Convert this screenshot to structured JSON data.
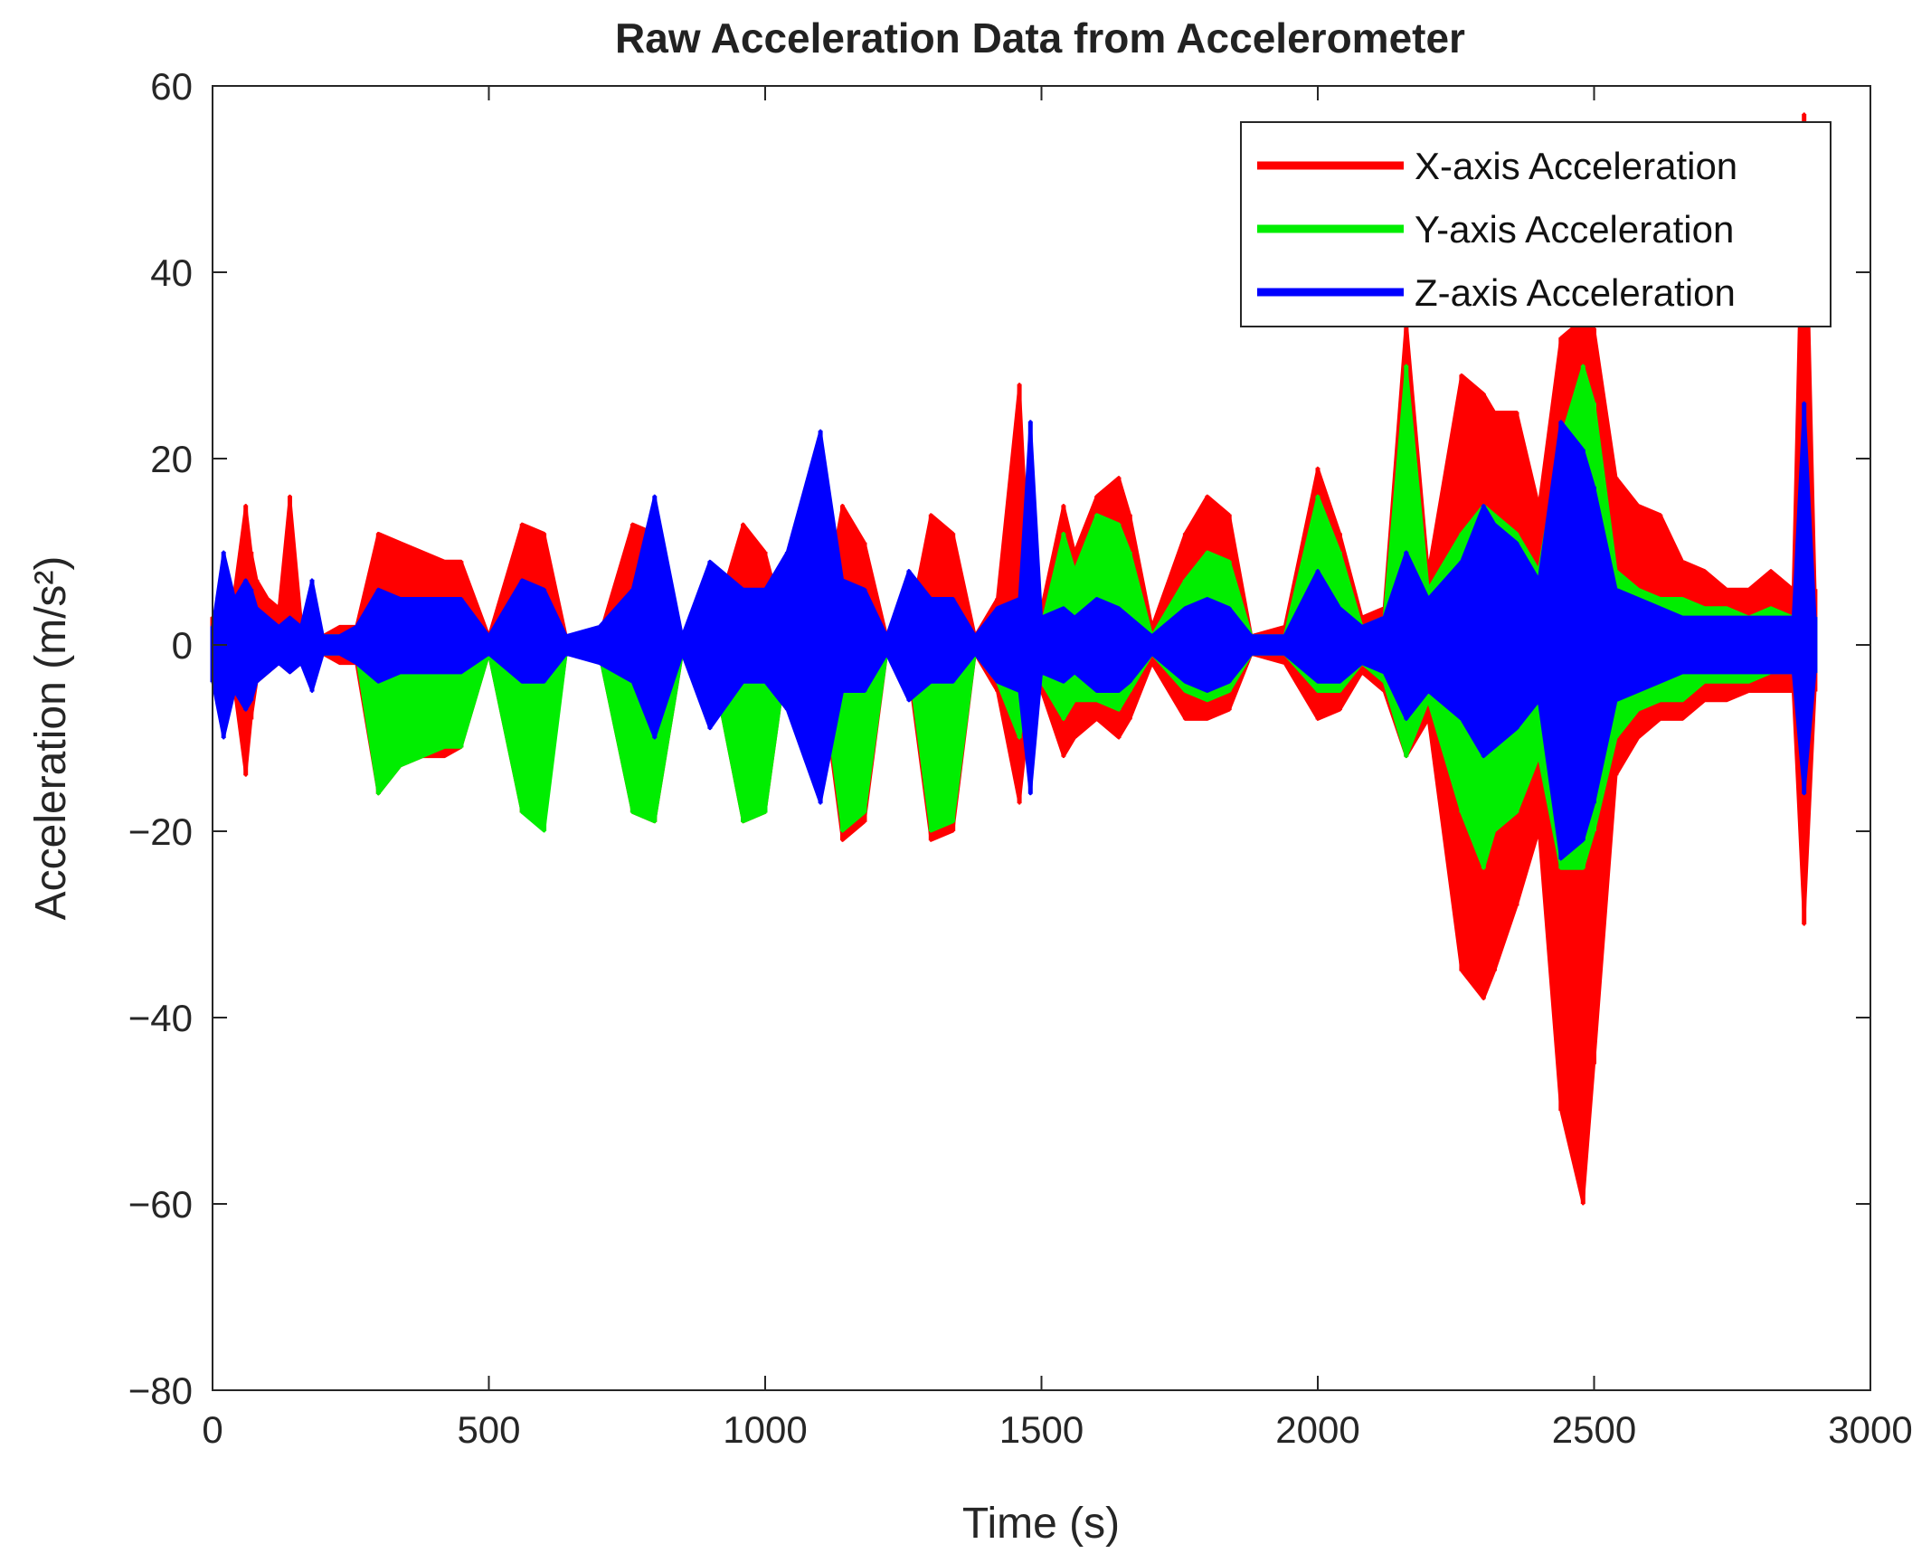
{
  "chart_data": {
    "type": "line",
    "title": "Raw Acceleration Data from Accelerometer",
    "xlabel": "Time (s)",
    "ylabel": "Acceleration (m/s²)",
    "xlim": [
      0,
      3000
    ],
    "ylim": [
      -80,
      60
    ],
    "xticks": [
      0,
      500,
      1000,
      1500,
      2000,
      2500,
      3000
    ],
    "xtick_labels": [
      "0",
      "500",
      "1000",
      "1500",
      "2000",
      "2500",
      "3000"
    ],
    "yticks": [
      60,
      40,
      20,
      0,
      -20,
      -40,
      -60,
      -80
    ],
    "ytick_labels": [
      "60",
      "40",
      "20",
      "0",
      "−20",
      "−40",
      "−60",
      "−80"
    ],
    "grid": false,
    "legend_position": "top-right",
    "series": [
      {
        "name": "X-axis Acceleration",
        "color": "#ff0000",
        "x": [
          0,
          20,
          40,
          60,
          70,
          80,
          100,
          120,
          140,
          160,
          180,
          200,
          230,
          260,
          300,
          340,
          380,
          420,
          450,
          500,
          560,
          600,
          640,
          700,
          760,
          800,
          850,
          900,
          960,
          1000,
          1040,
          1100,
          1140,
          1180,
          1220,
          1260,
          1300,
          1340,
          1380,
          1420,
          1460,
          1480,
          1500,
          1540,
          1560,
          1600,
          1640,
          1660,
          1700,
          1760,
          1800,
          1840,
          1880,
          1940,
          2000,
          2040,
          2080,
          2120,
          2160,
          2200,
          2260,
          2300,
          2320,
          2360,
          2400,
          2440,
          2480,
          2500,
          2540,
          2580,
          2620,
          2660,
          2700,
          2740,
          2780,
          2820,
          2860,
          2880,
          2900
        ],
        "upper": [
          3,
          3,
          6,
          15,
          10,
          7,
          5,
          4,
          16,
          3,
          2,
          1,
          2,
          2,
          12,
          11,
          10,
          9,
          9,
          1,
          13,
          12,
          1,
          1,
          13,
          12,
          1,
          1,
          13,
          10,
          1,
          2,
          15,
          11,
          1,
          2,
          14,
          12,
          1,
          5,
          28,
          5,
          4,
          15,
          10,
          16,
          18,
          14,
          2,
          12,
          16,
          14,
          1,
          2,
          19,
          12,
          3,
          4,
          35,
          8,
          29,
          27,
          25,
          25,
          15,
          33,
          35,
          34,
          18,
          15,
          14,
          9,
          8,
          6,
          6,
          8,
          6,
          57,
          6
        ],
        "lower": [
          -3,
          -4,
          -5,
          -14,
          -8,
          -4,
          -3,
          -2,
          -3,
          -2,
          -2,
          -1,
          -2,
          -2,
          -16,
          -13,
          -12,
          -12,
          -11,
          -1,
          -18,
          -19,
          -1,
          -1,
          -18,
          -19,
          -1,
          -1,
          -19,
          -18,
          -1,
          -3,
          -21,
          -19,
          -1,
          -3,
          -21,
          -20,
          -1,
          -5,
          -17,
          -6,
          -5,
          -12,
          -10,
          -8,
          -10,
          -8,
          -2,
          -8,
          -8,
          -7,
          -1,
          -2,
          -8,
          -7,
          -3,
          -5,
          -12,
          -8,
          -35,
          -38,
          -35,
          -28,
          -20,
          -50,
          -60,
          -45,
          -14,
          -10,
          -8,
          -8,
          -6,
          -6,
          -5,
          -5,
          -5,
          -30,
          -5
        ]
      },
      {
        "name": "Y-axis Acceleration",
        "color": "#00ee00",
        "x": [
          0,
          20,
          40,
          60,
          70,
          80,
          100,
          120,
          140,
          160,
          180,
          200,
          230,
          260,
          300,
          340,
          380,
          420,
          450,
          500,
          560,
          600,
          640,
          700,
          760,
          800,
          850,
          900,
          960,
          1000,
          1040,
          1100,
          1140,
          1180,
          1220,
          1260,
          1300,
          1340,
          1380,
          1420,
          1460,
          1480,
          1500,
          1540,
          1560,
          1600,
          1640,
          1660,
          1700,
          1760,
          1800,
          1840,
          1880,
          1940,
          2000,
          2040,
          2080,
          2120,
          2160,
          2200,
          2260,
          2300,
          2320,
          2360,
          2400,
          2440,
          2480,
          2500,
          2540,
          2580,
          2620,
          2660,
          2700,
          2740,
          2780,
          2820,
          2860,
          2880,
          2900
        ],
        "upper": [
          2,
          2,
          4,
          5,
          4,
          3,
          2,
          2,
          2,
          2,
          1,
          1,
          1,
          1,
          4,
          4,
          3,
          3,
          3,
          1,
          4,
          4,
          1,
          1,
          4,
          4,
          1,
          1,
          4,
          4,
          1,
          1,
          5,
          4,
          1,
          1,
          5,
          4,
          1,
          2,
          5,
          3,
          2,
          12,
          8,
          14,
          13,
          10,
          1,
          7,
          10,
          9,
          1,
          1,
          16,
          10,
          2,
          3,
          30,
          6,
          12,
          15,
          14,
          12,
          8,
          22,
          30,
          26,
          8,
          6,
          5,
          5,
          4,
          4,
          3,
          4,
          3,
          10,
          3
        ],
        "lower": [
          -2,
          -3,
          -3,
          -4,
          -3,
          -3,
          -2,
          -2,
          -2,
          -2,
          -1,
          -1,
          -1,
          -1,
          -16,
          -13,
          -12,
          -11,
          -11,
          -1,
          -18,
          -20,
          -1,
          -1,
          -18,
          -19,
          -1,
          -1,
          -19,
          -18,
          -1,
          -2,
          -20,
          -18,
          -1,
          -2,
          -20,
          -19,
          -1,
          -4,
          -10,
          -5,
          -4,
          -8,
          -6,
          -6,
          -7,
          -5,
          -1,
          -5,
          -6,
          -5,
          -1,
          -1,
          -5,
          -5,
          -2,
          -4,
          -12,
          -6,
          -18,
          -24,
          -20,
          -18,
          -12,
          -24,
          -24,
          -20,
          -10,
          -7,
          -6,
          -6,
          -4,
          -4,
          -4,
          -3,
          -3,
          -8,
          -3
        ]
      },
      {
        "name": "Z-axis Acceleration",
        "color": "#0000ff",
        "x": [
          0,
          20,
          40,
          60,
          70,
          80,
          100,
          120,
          140,
          160,
          180,
          200,
          230,
          260,
          300,
          340,
          380,
          420,
          450,
          500,
          560,
          600,
          640,
          700,
          760,
          800,
          850,
          900,
          960,
          1000,
          1040,
          1100,
          1140,
          1180,
          1220,
          1260,
          1300,
          1340,
          1380,
          1420,
          1460,
          1480,
          1500,
          1540,
          1560,
          1600,
          1640,
          1660,
          1700,
          1760,
          1800,
          1840,
          1880,
          1940,
          2000,
          2040,
          2080,
          2120,
          2160,
          2200,
          2260,
          2300,
          2320,
          2360,
          2400,
          2440,
          2480,
          2500,
          2540,
          2580,
          2620,
          2660,
          2700,
          2740,
          2780,
          2820,
          2860,
          2880,
          2900
        ],
        "upper": [
          2,
          10,
          5,
          7,
          6,
          4,
          3,
          2,
          3,
          2,
          7,
          1,
          1,
          2,
          6,
          5,
          5,
          5,
          5,
          1,
          7,
          6,
          1,
          2,
          6,
          16,
          1,
          9,
          6,
          6,
          10,
          23,
          7,
          6,
          1,
          8,
          5,
          5,
          1,
          4,
          5,
          24,
          3,
          4,
          3,
          5,
          4,
          3,
          1,
          4,
          5,
          4,
          1,
          1,
          8,
          4,
          2,
          3,
          10,
          5,
          9,
          15,
          13,
          11,
          7,
          24,
          21,
          17,
          6,
          5,
          4,
          3,
          3,
          3,
          3,
          3,
          3,
          26,
          3
        ],
        "lower": [
          -4,
          -10,
          -5,
          -7,
          -6,
          -4,
          -3,
          -2,
          -3,
          -2,
          -5,
          -1,
          -1,
          -2,
          -4,
          -3,
          -3,
          -3,
          -3,
          -1,
          -4,
          -4,
          -1,
          -2,
          -4,
          -10,
          -1,
          -9,
          -4,
          -4,
          -7,
          -17,
          -5,
          -5,
          -1,
          -6,
          -4,
          -4,
          -1,
          -4,
          -5,
          -16,
          -3,
          -4,
          -3,
          -5,
          -5,
          -4,
          -1,
          -4,
          -5,
          -4,
          -1,
          -1,
          -4,
          -4,
          -2,
          -3,
          -8,
          -5,
          -8,
          -12,
          -11,
          -9,
          -6,
          -23,
          -21,
          -17,
          -6,
          -5,
          -4,
          -3,
          -3,
          -3,
          -3,
          -3,
          -3,
          -16,
          -3
        ]
      }
    ]
  }
}
